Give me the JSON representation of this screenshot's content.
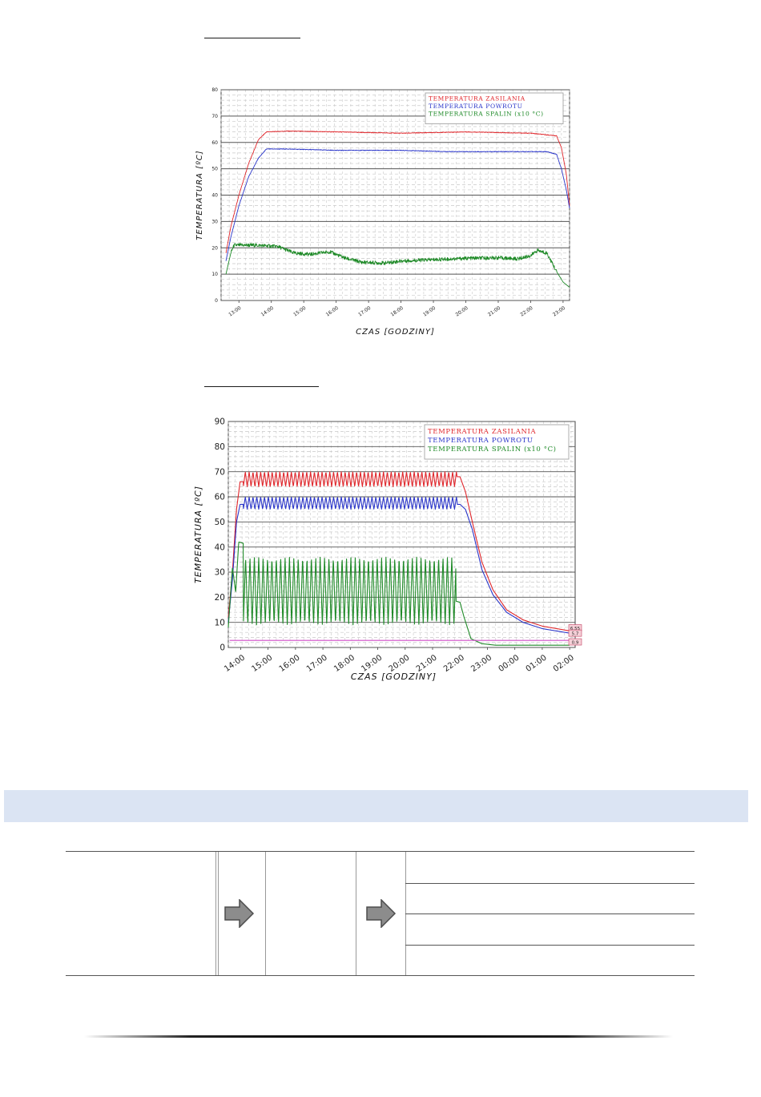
{
  "chart_data": [
    {
      "type": "line",
      "title": "",
      "xlabel": "CZAS [GODZINY]",
      "ylabel": "TEMPERATURA [ºC]",
      "x_ticks": [
        "13:00",
        "14:00",
        "15:00",
        "16:00",
        "17:00",
        "18:00",
        "19:00",
        "20:00",
        "21:00",
        "22:00",
        "23:00"
      ],
      "ylim": [
        0,
        80
      ],
      "y_ticks": [
        0,
        10,
        20,
        30,
        40,
        50,
        60,
        70,
        80
      ],
      "grid": true,
      "legend_position": "top-right",
      "series": [
        {
          "name": "TEMPERATURA ZASILANIA",
          "color": "#e0262b",
          "points": [
            [
              12.6,
              18
            ],
            [
              12.75,
              28
            ],
            [
              13.0,
              40
            ],
            [
              13.3,
              52
            ],
            [
              13.6,
              61
            ],
            [
              13.85,
              64
            ],
            [
              14.5,
              64.3
            ],
            [
              16.0,
              64
            ],
            [
              18.0,
              63.5
            ],
            [
              20.0,
              64
            ],
            [
              22.0,
              63.5
            ],
            [
              22.8,
              62.5
            ],
            [
              22.95,
              58
            ],
            [
              23.1,
              48
            ],
            [
              23.2,
              36
            ]
          ]
        },
        {
          "name": "TEMPERATURA POWROTU",
          "color": "#2a35c9",
          "points": [
            [
              12.6,
              15
            ],
            [
              12.75,
              24
            ],
            [
              13.0,
              36
            ],
            [
              13.3,
              47
            ],
            [
              13.6,
              54
            ],
            [
              13.85,
              57.5
            ],
            [
              14.5,
              57.5
            ],
            [
              16.0,
              57
            ],
            [
              18.0,
              57
            ],
            [
              19.5,
              56.5
            ],
            [
              21.0,
              56.5
            ],
            [
              22.5,
              56.5
            ],
            [
              22.8,
              55.5
            ],
            [
              22.95,
              50
            ],
            [
              23.1,
              42
            ],
            [
              23.2,
              35
            ]
          ]
        },
        {
          "name": "TEMPERATURA SPALIN (x10 °C)",
          "color": "#1f8a28",
          "points": [
            [
              12.6,
              10
            ],
            [
              12.75,
              18
            ],
            [
              12.85,
              21
            ],
            [
              13.5,
              21
            ],
            [
              14.2,
              20.5
            ],
            [
              14.7,
              18
            ],
            [
              15.2,
              17.5
            ],
            [
              15.8,
              18.5
            ],
            [
              16.3,
              16
            ],
            [
              16.8,
              14.5
            ],
            [
              17.5,
              14.2
            ],
            [
              18.0,
              15
            ],
            [
              19.0,
              15.5
            ],
            [
              20.0,
              16
            ],
            [
              21.0,
              16.2
            ],
            [
              21.6,
              15.8
            ],
            [
              22.0,
              17
            ],
            [
              22.2,
              19
            ],
            [
              22.5,
              18
            ],
            [
              22.8,
              11
            ],
            [
              23.0,
              7
            ],
            [
              23.2,
              5
            ]
          ]
        }
      ]
    },
    {
      "type": "line",
      "title": "",
      "xlabel": "CZAS [GODZINY]",
      "ylabel": "TEMPERATURA [ºC]",
      "x_ticks": [
        "14:00",
        "15:00",
        "16:00",
        "17:00",
        "18:00",
        "19:00",
        "20:00",
        "21:00",
        "22:00",
        "23:00",
        "00:00",
        "01:00",
        "02:00"
      ],
      "ylim": [
        0,
        90
      ],
      "y_ticks": [
        0,
        10,
        20,
        30,
        40,
        50,
        60,
        70,
        80,
        90
      ],
      "grid": true,
      "legend_position": "top-right",
      "end_labels": [
        "6.55",
        "5.7",
        "0.9"
      ],
      "series": [
        {
          "name": "TEMPERATURA ZASILANIA",
          "color": "#e0262b",
          "oscillation": {
            "start": 14.1,
            "end": 21.9,
            "period": 0.14,
            "low": 64,
            "high": 70
          },
          "points": [
            [
              13.55,
              12
            ],
            [
              13.7,
              30
            ],
            [
              13.85,
              55
            ],
            [
              13.98,
              66
            ],
            [
              22.0,
              68
            ],
            [
              22.2,
              62
            ],
            [
              22.45,
              50
            ],
            [
              22.8,
              34
            ],
            [
              23.2,
              23
            ],
            [
              23.7,
              15
            ],
            [
              24.3,
              11
            ],
            [
              25.0,
              8.5
            ],
            [
              26.0,
              6.6
            ]
          ]
        },
        {
          "name": "TEMPERATURA POWROTU",
          "color": "#2a35c9",
          "oscillation": {
            "start": 14.1,
            "end": 21.9,
            "period": 0.14,
            "low": 55,
            "high": 60
          },
          "points": [
            [
              13.55,
              10
            ],
            [
              13.7,
              27
            ],
            [
              13.85,
              50
            ],
            [
              13.98,
              57
            ],
            [
              22.0,
              57
            ],
            [
              22.2,
              55
            ],
            [
              22.45,
              47
            ],
            [
              22.8,
              31
            ],
            [
              23.2,
              21
            ],
            [
              23.7,
              14
            ],
            [
              24.3,
              10
            ],
            [
              25.0,
              7.5
            ],
            [
              26.0,
              5.7
            ]
          ]
        },
        {
          "name": "TEMPERATURA SPALIN (x10 °C)",
          "color": "#1f8a28",
          "oscillation": {
            "start": 14.1,
            "end": 21.85,
            "period": 0.16,
            "low": 9,
            "high": 36
          },
          "points": [
            [
              13.55,
              8
            ],
            [
              13.7,
              32
            ],
            [
              13.82,
              22
            ],
            [
              13.93,
              42
            ],
            [
              22.0,
              18
            ],
            [
              22.15,
              12
            ],
            [
              22.4,
              3.5
            ],
            [
              22.8,
              1.5
            ],
            [
              23.3,
              0.9
            ],
            [
              26.0,
              0.9
            ]
          ]
        },
        {
          "name": "",
          "color": "#d04cc8",
          "points": [
            [
              13.6,
              2.8
            ],
            [
              26.0,
              2.8
            ]
          ]
        }
      ]
    }
  ]
}
